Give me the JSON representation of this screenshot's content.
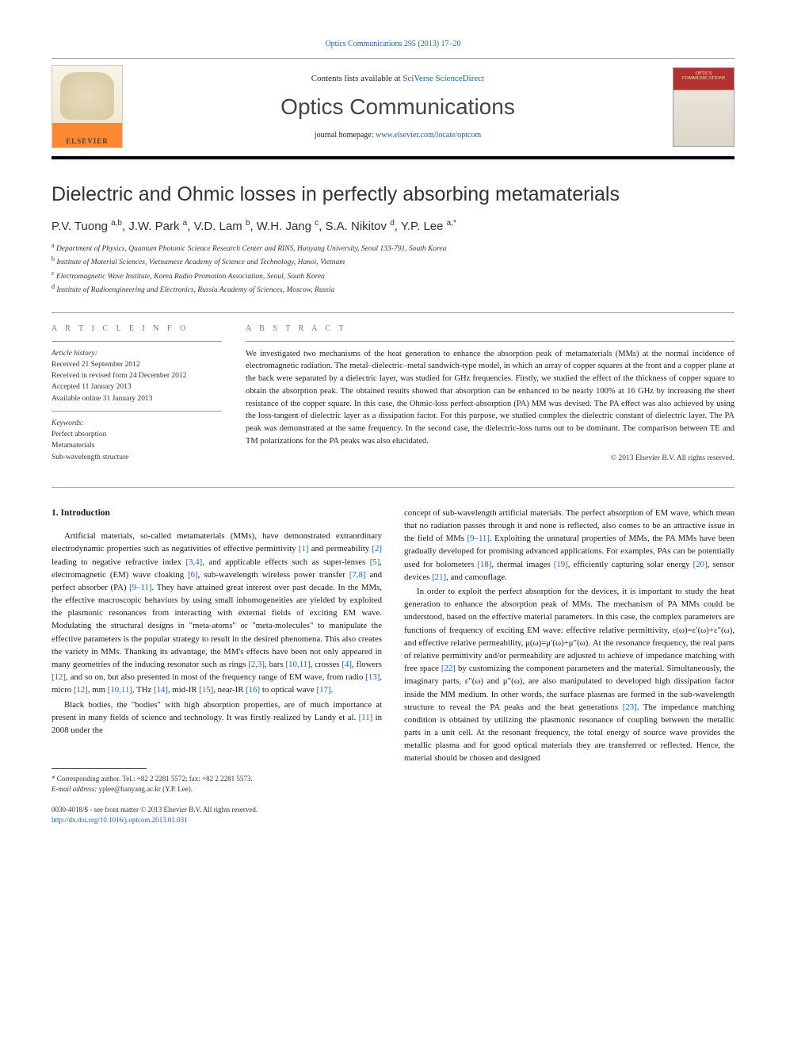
{
  "header": {
    "top_link": "Optics Communications 295 (2013) 17–20",
    "contents_prefix": "Contents lists available at ",
    "contents_link": "SciVerse ScienceDirect",
    "journal_name": "Optics Communications",
    "homepage_prefix": "journal homepage: ",
    "homepage_link": "www.elsevier.com/locate/optcom",
    "elsevier_label": "ELSEVIER",
    "cover_title": "OPTICS COMMUNICATIONS"
  },
  "article": {
    "title": "Dielectric and Ohmic losses in perfectly absorbing metamaterials",
    "authors_html": "P.V. Tuong <sup>a,b</sup>, J.W. Park <sup>a</sup>, V.D. Lam <sup>b</sup>, W.H. Jang <sup>c</sup>, S.A. Nikitov <sup>d</sup>, Y.P. Lee <sup>a,*</sup>",
    "affiliations": [
      "Department of Physics, Quantum Photonic Science Research Center and RINS, Hanyang University, Seoul 133-791, South Korea",
      "Institute of Material Sciences, Vietnamese Academy of Science and Technology, Hanoi, Vietnam",
      "Electromagnetic Wave Institute, Korea Radio Promotion Association, Seoul, South Korea",
      "Institute of Radioengineering and Electronics, Russia Academy of Sciences, Moscow, Russia"
    ],
    "affil_markers": [
      "a",
      "b",
      "c",
      "d"
    ]
  },
  "info": {
    "section_label": "A R T I C L E  I N F O",
    "history_label": "Article history:",
    "received": "Received 21 September 2012",
    "revised": "Received in revised form 24 December 2012",
    "accepted": "Accepted 11 January 2013",
    "online": "Available online 31 January 2013",
    "keywords_label": "Keywords:",
    "keywords": [
      "Perfect absorption",
      "Metamaterials",
      "Sub-wavelength structure"
    ]
  },
  "abstract": {
    "section_label": "A B S T R A C T",
    "text": "We investigated two mechanisms of the heat generation to enhance the absorption peak of metamaterials (MMs) at the normal incidence of electromagnetic radiation. The metal–dielectric–metal sandwich-type model, in which an array of copper squares at the front and a copper plane at the back were separated by a dielectric layer, was studied for GHz frequencies. Firstly, we studied the effect of the thickness of copper square to obtain the absorption peak. The obtained results showed that absorption can be enhanced to be nearly 100% at 16 GHz by increasing the sheet resistance of the copper square. In this case, the Ohmic-loss perfect-absorption (PA) MM was devised. The PA effect was also achieved by using the loss-tangent of dielectric layer as a dissipation factor. For this purpose, we studied complex the dielectric constant of dielectric layer. The PA peak was demonstrated at the same frequency. In the second case, the dielectric-loss turns out to be dominant. The comparison between TE and TM polarizations for the PA peaks was also elucidated.",
    "copyright": "© 2013 Elsevier B.V. All rights reserved."
  },
  "body": {
    "intro_heading": "1.  Introduction",
    "left_paragraphs": [
      "Artificial materials, so-called metamaterials (MMs), have demonstrated extraordinary electrodynamic properties such as negativities of effective permittivity [1] and permeability [2] leading to negative refractive index [3,4], and applicable effects such as super-lenses [5], electromagnetic (EM) wave cloaking [6], sub-wavelength wireless power transfer [7,8] and perfect absorber (PA) [9–11]. They have attained great interest over past decade. In the MMs, the effective macroscopic behaviors by using small inhomogeneities are yielded by exploited the plasmonic resonances from interacting with external fields of exciting EM wave. Modulating the structural designs in \"meta-atoms\" or \"meta-molecules\" to manipulate the effective parameters is the popular strategy to result in the desired phenomena. This also creates the variety in MMs. Thanking its advantage, the MM's effects have been not only appeared in many geometries of the inducing resonator such as rings [2,3], bars [10,11], crosses [4], flowers [12], and so on, but also presented in most of the frequency range of EM wave, from radio [13], micro [12], mm [10,11], THz [14], mid-IR [15], near-IR [16] to optical wave [17].",
      "Black bodies, the \"bodies\" with high absorption properties, are of much importance at present in many fields of science and technology. It was firstly realized by Landy et al. [11] in 2008 under the"
    ],
    "right_paragraphs": [
      "concept of sub-wavelength artificial materials. The perfect absorption of EM wave, which mean that no radiation passes through it and none is reflected, also comes to be an attractive issue in the field of MMs [9–11]. Exploiting the unnatural properties of MMs, the PA MMs have been gradually developed for promising advanced applications. For examples, PAs can be potentially used for bolometers [18], thermal images [19], efficiently capturing solar energy [20], sensor devices [21], and camouflage.",
      "In order to exploit the perfect absorption for the devices, it is important to study the heat generation to enhance the absorption peak of MMs. The mechanism of PA MMs could be understood, based on the effective material parameters. In this case, the complex parameters are functions of frequency of exciting EM wave: effective relative permittivity, ε(ω)=ε′(ω)+ε″(ω), and effective relative permeability, μ(ω)=μ′(ω)+μ″(ω). At the resonance frequency, the real parts of relative permittivity and/or permeability are adjusted to achieve of impedance matching with free space [22] by customizing the component parameters and the material. Simultaneously, the imaginary parts, ε″(ω) and μ″(ω), are also manipulated to developed high dissipation factor inside the MM medium. In other words, the surface plasmas are formed in the sub-wavelength structure to reveal the PA peaks and the heat generations [23]. The impedance matching condition is obtained by utilizing the plasmonic resonance of coupling between the metallic parts in a unit cell. At the resonant frequency, the total energy of source wave provides the metallic plasma and for good optical materials they are transferred or reflected. Hence, the material should be chosen and designed"
    ]
  },
  "footnote": {
    "corr": "* Corresponding author. Tel.: +82 2 2281 5572; fax: +82 2 2281 5573.",
    "email_label": "E-mail address:",
    "email": "yplee@hanyang.ac.kr (Y.P. Lee)."
  },
  "footer": {
    "issn": "0030-4018/$ - see front matter © 2013 Elsevier B.V. All rights reserved.",
    "doi": "http://dx.doi.org/10.1016/j.optcom.2013.01.031"
  }
}
